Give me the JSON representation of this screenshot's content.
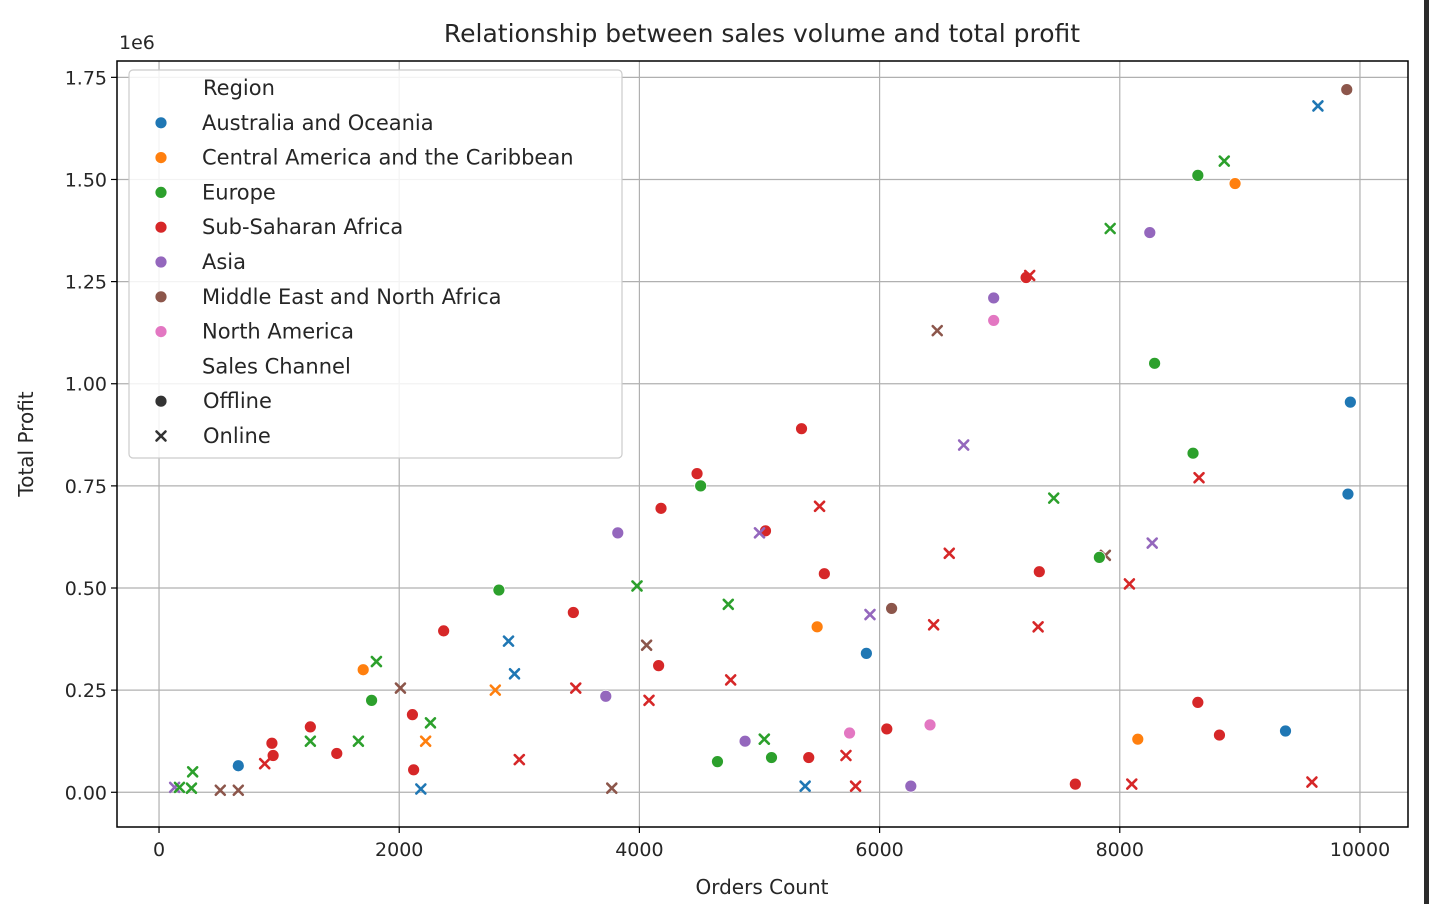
{
  "chart_data": {
    "type": "scatter",
    "title": "Relationship between sales volume and total profit",
    "xlabel": "Orders Count",
    "ylabel": "Total Profit",
    "y_offset_text": "1e6",
    "xlim": [
      -350,
      10400
    ],
    "ylim": [
      -0.085,
      1.79
    ],
    "x_ticks": [
      0,
      2000,
      4000,
      6000,
      8000,
      10000
    ],
    "x_tick_labels": [
      "0",
      "2000",
      "4000",
      "6000",
      "8000",
      "10000"
    ],
    "y_ticks": [
      0,
      0.25,
      0.5,
      0.75,
      1.0,
      1.25,
      1.5,
      1.75
    ],
    "y_tick_labels": [
      "0.00",
      "0.25",
      "0.50",
      "0.75",
      "1.00",
      "1.25",
      "1.50",
      "1.75"
    ],
    "grid": true,
    "legend": {
      "placement": "top-left",
      "hue_title": "Region",
      "style_title": "Sales Channel",
      "regions": [
        {
          "name": "Australia and Oceania",
          "color": "#1f77b4"
        },
        {
          "name": "Central America and the Caribbean",
          "color": "#ff7f0e"
        },
        {
          "name": "Europe",
          "color": "#2ca02c"
        },
        {
          "name": "Sub-Saharan Africa",
          "color": "#d62728"
        },
        {
          "name": "Asia",
          "color": "#9467bd"
        },
        {
          "name": "Middle East and North Africa",
          "color": "#8c564b"
        },
        {
          "name": "North America",
          "color": "#e377c2"
        }
      ],
      "channels": [
        {
          "name": "Offline",
          "marker": "circle"
        },
        {
          "name": "Online",
          "marker": "x"
        }
      ]
    },
    "points": [
      {
        "x": 9890,
        "y": 1.72,
        "region": 5,
        "channel": 0
      },
      {
        "x": 9650,
        "y": 1.68,
        "region": 0,
        "channel": 1
      },
      {
        "x": 8870,
        "y": 1.545,
        "region": 2,
        "channel": 1
      },
      {
        "x": 8650,
        "y": 1.51,
        "region": 2,
        "channel": 0
      },
      {
        "x": 8960,
        "y": 1.49,
        "region": 1,
        "channel": 0
      },
      {
        "x": 7920,
        "y": 1.38,
        "region": 2,
        "channel": 1
      },
      {
        "x": 8250,
        "y": 1.37,
        "region": 4,
        "channel": 0
      },
      {
        "x": 7220,
        "y": 1.26,
        "region": 3,
        "channel": 0
      },
      {
        "x": 7250,
        "y": 1.265,
        "region": 3,
        "channel": 1
      },
      {
        "x": 6950,
        "y": 1.21,
        "region": 4,
        "channel": 0
      },
      {
        "x": 6950,
        "y": 1.155,
        "region": 6,
        "channel": 0
      },
      {
        "x": 6480,
        "y": 1.13,
        "region": 5,
        "channel": 1
      },
      {
        "x": 8290,
        "y": 1.05,
        "region": 2,
        "channel": 0
      },
      {
        "x": 9920,
        "y": 0.955,
        "region": 0,
        "channel": 0
      },
      {
        "x": 5350,
        "y": 0.89,
        "region": 3,
        "channel": 0
      },
      {
        "x": 6700,
        "y": 0.85,
        "region": 4,
        "channel": 1
      },
      {
        "x": 8610,
        "y": 0.83,
        "region": 2,
        "channel": 0
      },
      {
        "x": 4480,
        "y": 0.78,
        "region": 3,
        "channel": 0
      },
      {
        "x": 8660,
        "y": 0.77,
        "region": 3,
        "channel": 1
      },
      {
        "x": 4510,
        "y": 0.75,
        "region": 2,
        "channel": 0
      },
      {
        "x": 9900,
        "y": 0.73,
        "region": 0,
        "channel": 0
      },
      {
        "x": 7450,
        "y": 0.72,
        "region": 2,
        "channel": 1
      },
      {
        "x": 5500,
        "y": 0.7,
        "region": 3,
        "channel": 1
      },
      {
        "x": 4180,
        "y": 0.695,
        "region": 3,
        "channel": 0
      },
      {
        "x": 5050,
        "y": 0.64,
        "region": 3,
        "channel": 0
      },
      {
        "x": 5000,
        "y": 0.635,
        "region": 4,
        "channel": 1
      },
      {
        "x": 3820,
        "y": 0.635,
        "region": 4,
        "channel": 0
      },
      {
        "x": 8270,
        "y": 0.61,
        "region": 4,
        "channel": 1
      },
      {
        "x": 6580,
        "y": 0.585,
        "region": 3,
        "channel": 1
      },
      {
        "x": 7880,
        "y": 0.58,
        "region": 5,
        "channel": 1
      },
      {
        "x": 7830,
        "y": 0.575,
        "region": 2,
        "channel": 0
      },
      {
        "x": 7330,
        "y": 0.54,
        "region": 3,
        "channel": 0
      },
      {
        "x": 5540,
        "y": 0.535,
        "region": 3,
        "channel": 0
      },
      {
        "x": 8080,
        "y": 0.51,
        "region": 3,
        "channel": 1
      },
      {
        "x": 3980,
        "y": 0.505,
        "region": 2,
        "channel": 1
      },
      {
        "x": 2830,
        "y": 0.495,
        "region": 2,
        "channel": 0
      },
      {
        "x": 4740,
        "y": 0.46,
        "region": 2,
        "channel": 1
      },
      {
        "x": 6100,
        "y": 0.45,
        "region": 5,
        "channel": 0
      },
      {
        "x": 3450,
        "y": 0.44,
        "region": 3,
        "channel": 0
      },
      {
        "x": 5920,
        "y": 0.435,
        "region": 4,
        "channel": 1
      },
      {
        "x": 6450,
        "y": 0.41,
        "region": 3,
        "channel": 1
      },
      {
        "x": 5480,
        "y": 0.405,
        "region": 1,
        "channel": 0
      },
      {
        "x": 7320,
        "y": 0.405,
        "region": 3,
        "channel": 1
      },
      {
        "x": 2370,
        "y": 0.395,
        "region": 3,
        "channel": 0
      },
      {
        "x": 2910,
        "y": 0.37,
        "region": 0,
        "channel": 1
      },
      {
        "x": 4060,
        "y": 0.36,
        "region": 5,
        "channel": 1
      },
      {
        "x": 5890,
        "y": 0.34,
        "region": 0,
        "channel": 0
      },
      {
        "x": 1810,
        "y": 0.32,
        "region": 2,
        "channel": 1
      },
      {
        "x": 4160,
        "y": 0.31,
        "region": 3,
        "channel": 0
      },
      {
        "x": 1700,
        "y": 0.3,
        "region": 1,
        "channel": 0
      },
      {
        "x": 2960,
        "y": 0.29,
        "region": 0,
        "channel": 1
      },
      {
        "x": 4760,
        "y": 0.275,
        "region": 3,
        "channel": 1
      },
      {
        "x": 2010,
        "y": 0.255,
        "region": 5,
        "channel": 1
      },
      {
        "x": 3470,
        "y": 0.255,
        "region": 3,
        "channel": 1
      },
      {
        "x": 2800,
        "y": 0.25,
        "region": 1,
        "channel": 1
      },
      {
        "x": 3720,
        "y": 0.235,
        "region": 4,
        "channel": 0
      },
      {
        "x": 1770,
        "y": 0.225,
        "region": 2,
        "channel": 0
      },
      {
        "x": 4080,
        "y": 0.225,
        "region": 3,
        "channel": 1
      },
      {
        "x": 8650,
        "y": 0.22,
        "region": 3,
        "channel": 0
      },
      {
        "x": 2110,
        "y": 0.19,
        "region": 3,
        "channel": 0
      },
      {
        "x": 2260,
        "y": 0.17,
        "region": 2,
        "channel": 1
      },
      {
        "x": 1260,
        "y": 0.16,
        "region": 3,
        "channel": 0
      },
      {
        "x": 6420,
        "y": 0.165,
        "region": 6,
        "channel": 0
      },
      {
        "x": 6060,
        "y": 0.155,
        "region": 3,
        "channel": 0
      },
      {
        "x": 9380,
        "y": 0.15,
        "region": 0,
        "channel": 0
      },
      {
        "x": 5750,
        "y": 0.145,
        "region": 6,
        "channel": 0
      },
      {
        "x": 8830,
        "y": 0.14,
        "region": 3,
        "channel": 0
      },
      {
        "x": 8150,
        "y": 0.13,
        "region": 1,
        "channel": 0
      },
      {
        "x": 5040,
        "y": 0.13,
        "region": 2,
        "channel": 1
      },
      {
        "x": 1260,
        "y": 0.125,
        "region": 2,
        "channel": 1
      },
      {
        "x": 2220,
        "y": 0.125,
        "region": 1,
        "channel": 1
      },
      {
        "x": 1660,
        "y": 0.125,
        "region": 2,
        "channel": 1
      },
      {
        "x": 4880,
        "y": 0.125,
        "region": 4,
        "channel": 0
      },
      {
        "x": 940,
        "y": 0.12,
        "region": 3,
        "channel": 0
      },
      {
        "x": 1480,
        "y": 0.095,
        "region": 3,
        "channel": 0
      },
      {
        "x": 5720,
        "y": 0.09,
        "region": 3,
        "channel": 1
      },
      {
        "x": 950,
        "y": 0.09,
        "region": 3,
        "channel": 0
      },
      {
        "x": 5410,
        "y": 0.085,
        "region": 3,
        "channel": 0
      },
      {
        "x": 5100,
        "y": 0.085,
        "region": 2,
        "channel": 0
      },
      {
        "x": 3000,
        "y": 0.08,
        "region": 3,
        "channel": 1
      },
      {
        "x": 4650,
        "y": 0.075,
        "region": 2,
        "channel": 0
      },
      {
        "x": 880,
        "y": 0.07,
        "region": 3,
        "channel": 1
      },
      {
        "x": 660,
        "y": 0.065,
        "region": 0,
        "channel": 0
      },
      {
        "x": 2120,
        "y": 0.055,
        "region": 3,
        "channel": 0
      },
      {
        "x": 280,
        "y": 0.05,
        "region": 2,
        "channel": 1
      },
      {
        "x": 7630,
        "y": 0.02,
        "region": 3,
        "channel": 0
      },
      {
        "x": 8100,
        "y": 0.02,
        "region": 3,
        "channel": 1
      },
      {
        "x": 9600,
        "y": 0.025,
        "region": 3,
        "channel": 1
      },
      {
        "x": 5380,
        "y": 0.015,
        "region": 0,
        "channel": 1
      },
      {
        "x": 5800,
        "y": 0.015,
        "region": 3,
        "channel": 1
      },
      {
        "x": 6260,
        "y": 0.015,
        "region": 4,
        "channel": 0
      },
      {
        "x": 3770,
        "y": 0.01,
        "region": 5,
        "channel": 1
      },
      {
        "x": 2180,
        "y": 0.008,
        "region": 0,
        "channel": 1
      },
      {
        "x": 130,
        "y": 0.012,
        "region": 4,
        "channel": 1
      },
      {
        "x": 170,
        "y": 0.012,
        "region": 2,
        "channel": 1
      },
      {
        "x": 270,
        "y": 0.01,
        "region": 2,
        "channel": 1
      },
      {
        "x": 510,
        "y": 0.005,
        "region": 5,
        "channel": 1
      },
      {
        "x": 660,
        "y": 0.005,
        "region": 5,
        "channel": 1
      }
    ]
  }
}
